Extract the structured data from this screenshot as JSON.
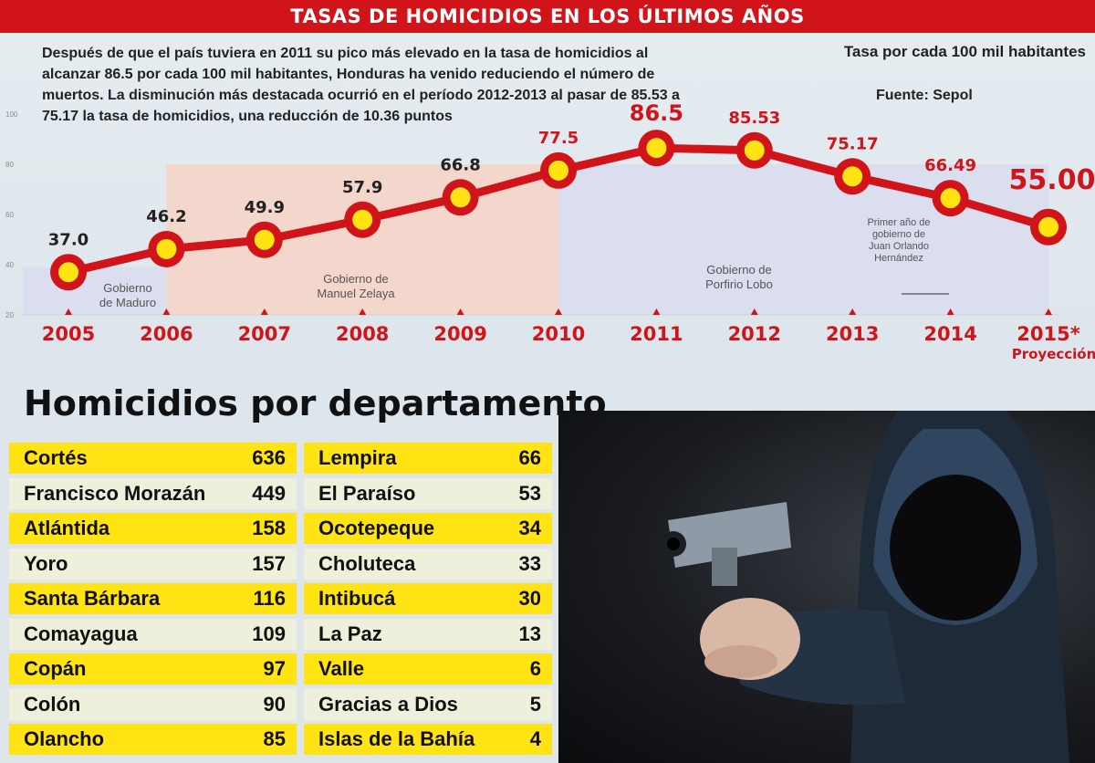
{
  "header": {
    "title": "TASAS DE HOMICIDIOS EN LOS ÚLTIMOS AÑOS"
  },
  "intro_text": "Después de que el país tuviera en 2011 su pico más elevado en la tasa de homicidios al alcanzar 86.5 por cada 100 mil habitantes, Honduras ha venido reduciendo el número de muertos. La disminución más destacada ocurrió en el período 2012-2013 al pasar de 85.53 a 75.17 la tasa de homicidios, una reducción de 10.36 puntos",
  "unit_label": "Tasa por cada 100 mil habitantes",
  "source_label": "Fuente: Sepol",
  "chart_data": {
    "type": "line",
    "categories": [
      "2005",
      "2006",
      "2007",
      "2008",
      "2009",
      "2010",
      "2011",
      "2012",
      "2013",
      "2014",
      "2015*"
    ],
    "category_sublabels": [
      "",
      "",
      "",
      "",
      "",
      "",
      "",
      "",
      "",
      "",
      "Proyección"
    ],
    "values": [
      37.0,
      46.2,
      49.9,
      57.9,
      66.8,
      77.5,
      86.5,
      85.53,
      75.17,
      66.49,
      55.0
    ],
    "data_labels": [
      "37.0",
      "46.2",
      "49.9",
      "57.9",
      "66.8",
      "77.5",
      "86.5",
      "85.53",
      "75.17",
      "66.49",
      "55.00"
    ],
    "y_ticks": [
      "100",
      "80",
      "60",
      "40",
      "20"
    ],
    "ylim": [
      20,
      100
    ],
    "grid": false,
    "periods": [
      {
        "label": "Gobierno de Maduro",
        "from": 0,
        "to": 1,
        "color": "#d9dcef"
      },
      {
        "label": "Gobierno de Manuel Zelaya",
        "from": 1,
        "to": 5,
        "color": "#f7d4c6"
      },
      {
        "label": "Gobierno de Porfirio Lobo",
        "from": 5,
        "to": 10,
        "color": "#d9dcef"
      }
    ],
    "annotation": "Primer año de gobierno de Juan Orlando Hernández",
    "line_color": "#d0141a",
    "marker_color": "#ffe312",
    "label_colors": {
      "normal": "#222222",
      "highlight": "#d0141a"
    }
  },
  "departments": {
    "title": "Homicidios por departamento",
    "left": [
      {
        "name": "Cortés",
        "value": "636"
      },
      {
        "name": "Francisco Morazán",
        "value": "449"
      },
      {
        "name": "Atlántida",
        "value": "158"
      },
      {
        "name": "Yoro",
        "value": "157"
      },
      {
        "name": "Santa Bárbara",
        "value": "116"
      },
      {
        "name": "Comayagua",
        "value": "109"
      },
      {
        "name": "Copán",
        "value": "97"
      },
      {
        "name": "Colón",
        "value": "90"
      },
      {
        "name": "Olancho",
        "value": "85"
      }
    ],
    "right": [
      {
        "name": "Lempira",
        "value": "66"
      },
      {
        "name": "El Paraíso",
        "value": "53"
      },
      {
        "name": "Ocotepeque",
        "value": "34"
      },
      {
        "name": "Choluteca",
        "value": "33"
      },
      {
        "name": "Intibucá",
        "value": "30"
      },
      {
        "name": "La Paz",
        "value": "13"
      },
      {
        "name": "Valle",
        "value": "6"
      },
      {
        "name": "Gracias a Dios",
        "value": "5"
      },
      {
        "name": "Islas de la Bahía",
        "value": "4"
      }
    ],
    "row_colors": {
      "yellow": "#ffe312",
      "gray": "#eef0dc"
    }
  },
  "photo": {
    "subject": "hooded-gunman-photo"
  }
}
